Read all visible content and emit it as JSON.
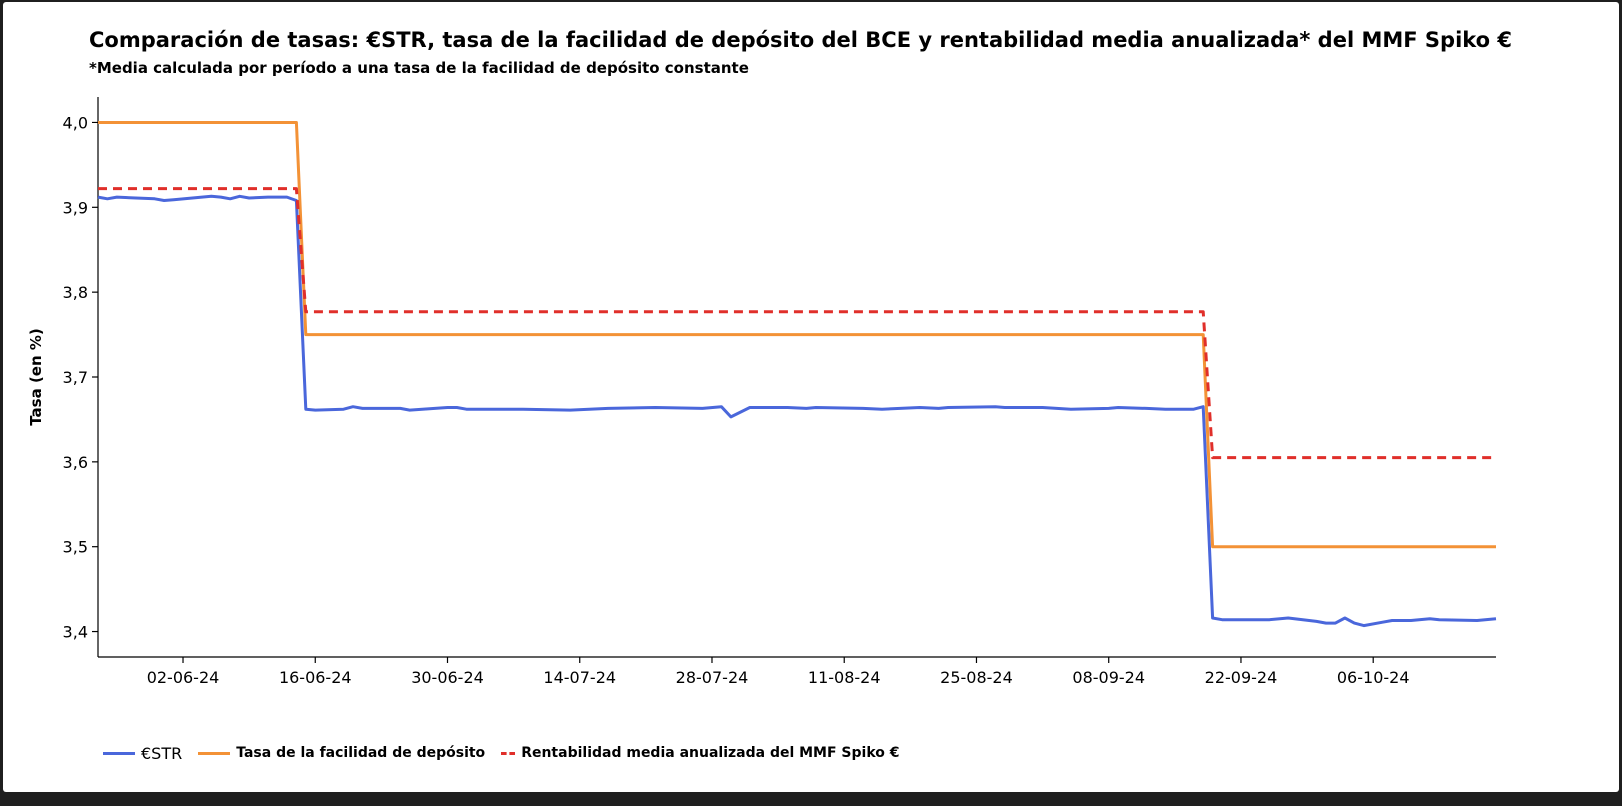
{
  "title": "Comparación de tasas: €STR, tasa de la facilidad de depósito del BCE y rentabilidad media anualizada* del MMF Spiko €",
  "subtitle": "*Media calculada por período a una tasa de la facilidad de depósito constante",
  "chart_data": {
    "type": "line",
    "title": "Comparación de tasas: €STR, tasa de la facilidad de depósito del BCE y rentabilidad media anualizada* del MMF Spiko €",
    "subtitle": "*Media calculada por período a una tasa de la facilidad de depósito constante",
    "xlabel": "",
    "ylabel": "Tasa (en %)",
    "ylim": [
      3.37,
      4.03
    ],
    "yticks": [
      "3,4",
      "3,5",
      "3,6",
      "3,7",
      "3,8",
      "3,9",
      "4,0"
    ],
    "ytick_values": [
      3.4,
      3.5,
      3.6,
      3.7,
      3.8,
      3.9,
      4.0
    ],
    "xlim": [
      "2024-05-24",
      "2024-10-19"
    ],
    "xticks": [
      "02-06-24",
      "16-06-24",
      "30-06-24",
      "14-07-24",
      "28-07-24",
      "11-08-24",
      "25-08-24",
      "08-09-24",
      "22-09-24",
      "06-10-24"
    ],
    "xtick_dates": [
      "2024-06-02",
      "2024-06-16",
      "2024-06-30",
      "2024-07-14",
      "2024-07-28",
      "2024-08-11",
      "2024-08-25",
      "2024-09-08",
      "2024-09-22",
      "2024-10-06"
    ],
    "grid": false,
    "legend_position": "bottom-left",
    "series": [
      {
        "name": "€STR",
        "color": "#4a67db",
        "style": "solid",
        "points": [
          [
            "2024-05-24",
            3.912
          ],
          [
            "2024-05-25",
            3.91
          ],
          [
            "2024-05-26",
            3.912
          ],
          [
            "2024-05-28",
            3.911
          ],
          [
            "2024-05-30",
            3.91
          ],
          [
            "2024-05-31",
            3.908
          ],
          [
            "2024-06-01",
            3.909
          ],
          [
            "2024-06-03",
            3.911
          ],
          [
            "2024-06-05",
            3.913
          ],
          [
            "2024-06-06",
            3.912
          ],
          [
            "2024-06-07",
            3.91
          ],
          [
            "2024-06-08",
            3.913
          ],
          [
            "2024-06-09",
            3.911
          ],
          [
            "2024-06-11",
            3.912
          ],
          [
            "2024-06-13",
            3.912
          ],
          [
            "2024-06-14",
            3.908
          ],
          [
            "2024-06-15",
            3.662
          ],
          [
            "2024-06-16",
            3.661
          ],
          [
            "2024-06-19",
            3.662
          ],
          [
            "2024-06-20",
            3.665
          ],
          [
            "2024-06-21",
            3.663
          ],
          [
            "2024-06-25",
            3.663
          ],
          [
            "2024-06-26",
            3.661
          ],
          [
            "2024-06-30",
            3.664
          ],
          [
            "2024-07-01",
            3.664
          ],
          [
            "2024-07-02",
            3.662
          ],
          [
            "2024-07-08",
            3.662
          ],
          [
            "2024-07-13",
            3.661
          ],
          [
            "2024-07-17",
            3.663
          ],
          [
            "2024-07-22",
            3.664
          ],
          [
            "2024-07-27",
            3.663
          ],
          [
            "2024-07-29",
            3.665
          ],
          [
            "2024-07-30",
            3.653
          ],
          [
            "2024-08-01",
            3.664
          ],
          [
            "2024-08-05",
            3.664
          ],
          [
            "2024-08-07",
            3.663
          ],
          [
            "2024-08-08",
            3.664
          ],
          [
            "2024-08-13",
            3.663
          ],
          [
            "2024-08-15",
            3.662
          ],
          [
            "2024-08-19",
            3.664
          ],
          [
            "2024-08-21",
            3.663
          ],
          [
            "2024-08-22",
            3.664
          ],
          [
            "2024-08-27",
            3.665
          ],
          [
            "2024-08-28",
            3.664
          ],
          [
            "2024-09-01",
            3.664
          ],
          [
            "2024-09-04",
            3.662
          ],
          [
            "2024-09-08",
            3.663
          ],
          [
            "2024-09-09",
            3.664
          ],
          [
            "2024-09-12",
            3.663
          ],
          [
            "2024-09-14",
            3.662
          ],
          [
            "2024-09-17",
            3.662
          ],
          [
            "2024-09-18",
            3.665
          ],
          [
            "2024-09-19",
            3.416
          ],
          [
            "2024-09-20",
            3.414
          ],
          [
            "2024-09-25",
            3.414
          ],
          [
            "2024-09-27",
            3.416
          ],
          [
            "2024-09-30",
            3.412
          ],
          [
            "2024-10-01",
            3.41
          ],
          [
            "2024-10-02",
            3.41
          ],
          [
            "2024-10-03",
            3.416
          ],
          [
            "2024-10-04",
            3.41
          ],
          [
            "2024-10-05",
            3.407
          ],
          [
            "2024-10-07",
            3.411
          ],
          [
            "2024-10-08",
            3.413
          ],
          [
            "2024-10-10",
            3.413
          ],
          [
            "2024-10-12",
            3.415
          ],
          [
            "2024-10-13",
            3.414
          ],
          [
            "2024-10-17",
            3.413
          ],
          [
            "2024-10-19",
            3.415
          ]
        ]
      },
      {
        "name": "Tasa de la facilidad de depósito",
        "color": "#f39236",
        "style": "solid",
        "points": [
          [
            "2024-05-24",
            4.0
          ],
          [
            "2024-06-14",
            4.0
          ],
          [
            "2024-06-15",
            3.75
          ],
          [
            "2024-09-18",
            3.75
          ],
          [
            "2024-09-19",
            3.5
          ],
          [
            "2024-10-19",
            3.5
          ]
        ]
      },
      {
        "name": "Rentabilidad media anualizada del MMF Spiko €",
        "color": "#e02f2a",
        "style": "dashed",
        "points": [
          [
            "2024-05-24",
            3.922
          ],
          [
            "2024-06-14",
            3.922
          ],
          [
            "2024-06-15",
            3.777
          ],
          [
            "2024-09-18",
            3.777
          ],
          [
            "2024-09-19",
            3.605
          ],
          [
            "2024-10-19",
            3.605
          ]
        ]
      }
    ]
  }
}
